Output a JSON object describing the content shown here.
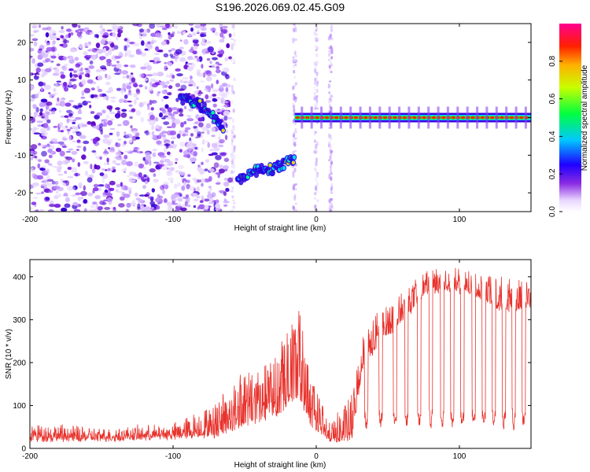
{
  "figure_title": "S196.2026.069.02.45.G09",
  "chart_data": [
    {
      "type": "heatmap",
      "title": "S196.2026.069.02.45.G09",
      "xlabel": "Height of straight line (km)",
      "ylabel": "Frequency (Hz)",
      "xlim": [
        -200,
        150
      ],
      "ylim": [
        -25,
        25
      ],
      "xticks": [
        -200,
        -100,
        0,
        100
      ],
      "yticks": [
        -20,
        -10,
        0,
        10,
        20
      ],
      "colorbar": {
        "label": "Normalized spectral amplitude",
        "range": [
          0.0,
          1.0
        ],
        "ticks": [
          0.0,
          0.2,
          0.4,
          0.6,
          0.8
        ],
        "tick_labels": [
          "0.0",
          "0.2",
          "0.4",
          "0.6",
          "0.8"
        ]
      },
      "features": [
        {
          "name": "scattered noise",
          "x_range": [
            -200,
            -60
          ],
          "freq_range": [
            -25,
            25
          ],
          "amplitude": 0.15
        },
        {
          "name": "descending branch",
          "points": [
            [
              -95,
              5
            ],
            [
              -88,
              4.5
            ],
            [
              -80,
              3
            ],
            [
              -72,
              0
            ],
            [
              -65,
              -2.5
            ]
          ],
          "amplitude": 0.35
        },
        {
          "name": "ascending branch",
          "points": [
            [
              -55,
              -17
            ],
            [
              -48,
              -15
            ],
            [
              -40,
              -14
            ],
            [
              -30,
              -13.5
            ],
            [
              -20,
              -12
            ],
            [
              -15,
              -11
            ]
          ],
          "amplitude": 0.45
        },
        {
          "name": "zero-frequency band",
          "x_range": [
            -15,
            150
          ],
          "frequency": 0,
          "amplitude": 0.95
        }
      ]
    },
    {
      "type": "line",
      "xlabel": "Height of straight line (km)",
      "ylabel": "SNR (10 * v/v)",
      "xlim": [
        -200,
        150
      ],
      "ylim": [
        0,
        440
      ],
      "xticks": [
        -200,
        -100,
        0,
        100
      ],
      "yticks": [
        0,
        100,
        200,
        300,
        400
      ],
      "color": "#e8322c",
      "series": [
        {
          "name": "SNR",
          "envelope": [
            {
              "x": -200,
              "base": 20,
              "peak": 60
            },
            {
              "x": -150,
              "base": 20,
              "peak": 45
            },
            {
              "x": -100,
              "base": 25,
              "peak": 55
            },
            {
              "x": -70,
              "base": 30,
              "peak": 110
            },
            {
              "x": -55,
              "base": 50,
              "peak": 170
            },
            {
              "x": -35,
              "base": 70,
              "peak": 200
            },
            {
              "x": -20,
              "base": 90,
              "peak": 280
            },
            {
              "x": -12,
              "base": 120,
              "peak": 330
            },
            {
              "x": -5,
              "base": 60,
              "peak": 180
            },
            {
              "x": 10,
              "base": 15,
              "peak": 60
            },
            {
              "x": 25,
              "base": 20,
              "peak": 130
            },
            {
              "x": 32,
              "base": 180,
              "peak": 270
            },
            {
              "x": 45,
              "base": 250,
              "peak": 330
            },
            {
              "x": 62,
              "base": 300,
              "peak": 370
            },
            {
              "x": 75,
              "base": 360,
              "peak": 410
            },
            {
              "x": 90,
              "base": 370,
              "peak": 430
            },
            {
              "x": 110,
              "base": 360,
              "peak": 410
            },
            {
              "x": 130,
              "base": 320,
              "peak": 400
            },
            {
              "x": 150,
              "base": 330,
              "peak": 390
            }
          ],
          "dropouts_x": [
            35,
            45,
            55,
            63,
            72,
            80,
            88,
            95,
            102,
            110,
            117,
            124,
            131,
            138,
            145
          ]
        }
      ]
    }
  ]
}
